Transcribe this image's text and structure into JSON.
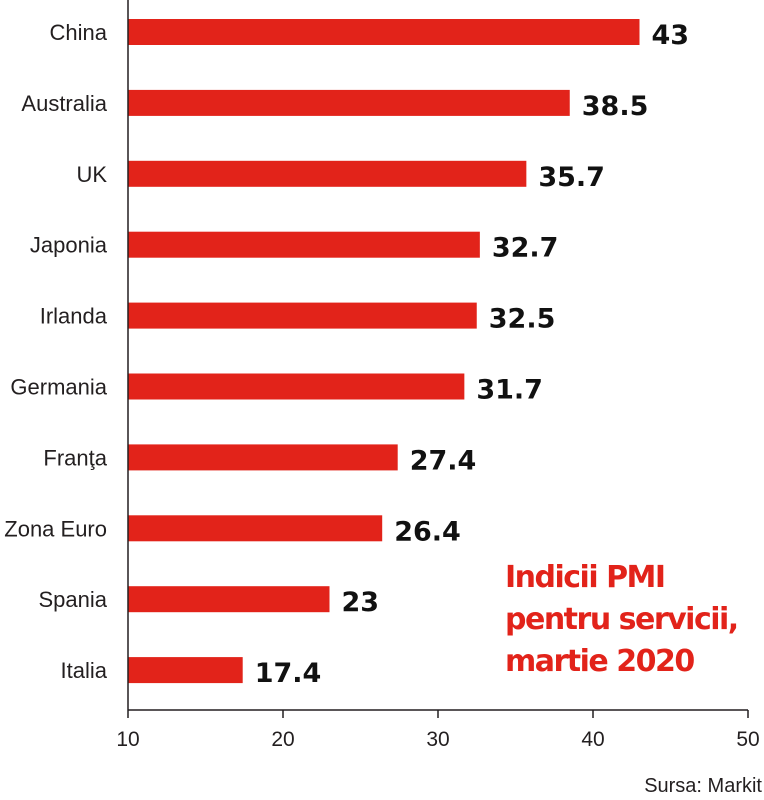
{
  "chart_data": {
    "type": "bar",
    "orientation": "horizontal",
    "categories": [
      "China",
      "Australia",
      "UK",
      "Japonia",
      "Irlanda",
      "Germania",
      "Franţa",
      "Zona Euro",
      "Spania",
      "Italia"
    ],
    "values": [
      43,
      38.5,
      35.7,
      32.7,
      32.5,
      31.7,
      27.4,
      26.4,
      23,
      17.4
    ],
    "value_labels": [
      "43",
      "38.5",
      "35.7",
      "32.7",
      "32.5",
      "31.7",
      "27.4",
      "26.4",
      "23",
      "17.4"
    ],
    "xlim": [
      10,
      50
    ],
    "x_ticks": [
      "10",
      "20",
      "30",
      "40",
      "50"
    ],
    "grid": false,
    "bar_color": "#e2231a",
    "title_lines": [
      "Indicii PMI",
      "pentru servicii,",
      "martie 2020"
    ],
    "title_color": "#e2231a",
    "source": "Sursa: Markit"
  }
}
